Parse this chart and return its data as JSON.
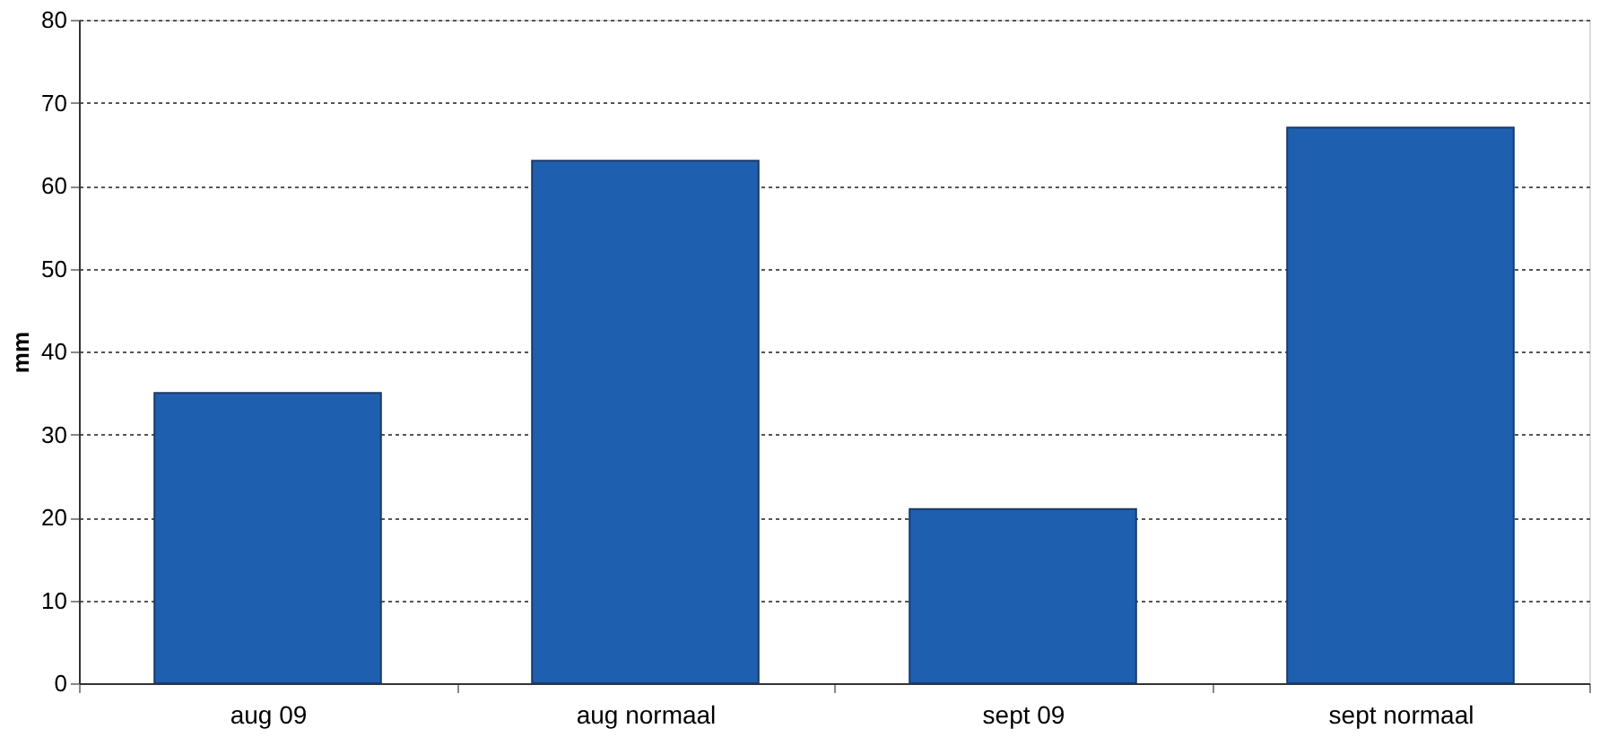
{
  "chart_data": {
    "type": "bar",
    "ylabel": "mm",
    "categories": [
      "aug 09",
      "aug normaal",
      "sept 09",
      "sept normaal"
    ],
    "values": [
      35,
      63,
      21,
      67
    ],
    "color": "#1f5fb0",
    "ylim": [
      0,
      80
    ],
    "yticks": [
      0,
      10,
      20,
      30,
      40,
      50,
      60,
      70,
      80
    ],
    "grid": "y"
  }
}
